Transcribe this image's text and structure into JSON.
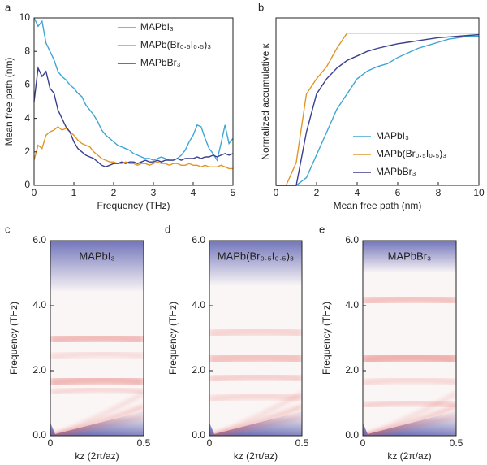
{
  "chart_data": [
    {
      "type": "line",
      "panel_label": "a",
      "xlabel": "Frequency (THz)",
      "ylabel": "Mean free path (nm)",
      "xlim": [
        0,
        5
      ],
      "ylim": [
        0,
        10
      ],
      "xticks": [
        0,
        1,
        2,
        3,
        4,
        5
      ],
      "yticks": [
        0,
        2,
        4,
        6,
        8,
        10
      ],
      "legend": "upper right",
      "x": [
        0,
        0.1,
        0.2,
        0.3,
        0.4,
        0.5,
        0.6,
        0.7,
        0.8,
        0.9,
        1,
        1.1,
        1.2,
        1.3,
        1.4,
        1.5,
        1.6,
        1.7,
        1.8,
        1.9,
        2,
        2.1,
        2.2,
        2.3,
        2.4,
        2.5,
        2.6,
        2.7,
        2.8,
        2.9,
        3,
        3.1,
        3.2,
        3.3,
        3.4,
        3.5,
        3.6,
        3.7,
        3.8,
        3.9,
        4,
        4.1,
        4.2,
        4.3,
        4.4,
        4.5,
        4.6,
        4.7,
        4.8,
        4.9,
        5
      ],
      "series": [
        {
          "name": "MAPbI₃",
          "color": "#3ea6d6",
          "values": [
            10,
            9.5,
            9.8,
            8.5,
            8,
            7.5,
            6.8,
            6.5,
            6.3,
            6,
            5.8,
            5.5,
            5.3,
            4.8,
            4.5,
            4.2,
            3.8,
            3.3,
            3,
            2.8,
            2.6,
            2.4,
            2.3,
            2.2,
            2.1,
            1.9,
            1.8,
            1.7,
            1.6,
            1.6,
            1.5,
            1.6,
            1.7,
            1.6,
            1.5,
            1.5,
            1.6,
            1.8,
            2.1,
            2.6,
            3,
            3.6,
            3.5,
            2.8,
            2.2,
            1.9,
            1.5,
            2.5,
            3.6,
            2.5,
            2.8
          ]
        },
        {
          "name": "MAPb(Br₀.₅I₀.₅)₃",
          "color": "#e0962a",
          "values": [
            1.5,
            2.4,
            2.2,
            3,
            3.2,
            3.3,
            3.5,
            3.3,
            3.4,
            3.2,
            3,
            2.7,
            2.5,
            2.4,
            2.3,
            2,
            1.8,
            1.6,
            1.5,
            1.4,
            1.4,
            1.3,
            1.3,
            1.4,
            1.3,
            1.3,
            1.2,
            1.3,
            1.3,
            1.2,
            1.3,
            1.4,
            1.3,
            1.3,
            1.2,
            1.3,
            1.3,
            1.2,
            1.2,
            1.3,
            1.2,
            1.2,
            1.1,
            1.2,
            1.1,
            1.1,
            1.1,
            1.2,
            1.1,
            1,
            1
          ]
        },
        {
          "name": "MAPbBr₃",
          "color": "#3a3f8f",
          "values": [
            5,
            7,
            6.5,
            6.8,
            5.8,
            5.5,
            4.5,
            4,
            3.5,
            3.2,
            2.6,
            2.2,
            2,
            1.8,
            1.7,
            1.6,
            1.4,
            1.2,
            1.1,
            1.2,
            1.3,
            1.3,
            1.4,
            1.3,
            1.4,
            1.4,
            1.3,
            1.4,
            1.5,
            1.4,
            1.4,
            1.5,
            1.4,
            1.5,
            1.5,
            1.5,
            1.6,
            1.5,
            1.6,
            1.6,
            1.6,
            1.7,
            1.6,
            1.7,
            1.7,
            1.8,
            1.7,
            1.8,
            1.9,
            1.8,
            1.9
          ]
        }
      ]
    },
    {
      "type": "line",
      "panel_label": "b",
      "xlabel": "Mean free path (nm)",
      "ylabel": "Normalized accumulative κ",
      "xlim": [
        0,
        10
      ],
      "ylim": [
        0,
        1.1
      ],
      "xticks": [
        0,
        2,
        4,
        6,
        8,
        10
      ],
      "yticks": [],
      "legend": "lower right",
      "x": [
        0,
        0.5,
        1,
        1.5,
        2,
        2.5,
        3,
        3.5,
        4,
        4.5,
        5,
        5.5,
        6,
        6.5,
        7,
        7.5,
        8,
        8.5,
        9,
        9.5,
        10
      ],
      "series": [
        {
          "name": "MAPbI₃",
          "color": "#3ea6d6",
          "values": [
            0,
            0,
            0,
            0.05,
            0.2,
            0.35,
            0.5,
            0.6,
            0.7,
            0.75,
            0.78,
            0.8,
            0.84,
            0.87,
            0.9,
            0.92,
            0.94,
            0.96,
            0.97,
            0.98,
            0.98
          ]
        },
        {
          "name": "MAPb(Br₀.₅I₀.₅)₃",
          "color": "#e0962a",
          "values": [
            0,
            0,
            0.15,
            0.6,
            0.7,
            0.78,
            0.9,
            1,
            1,
            1,
            1,
            1,
            1,
            1,
            1,
            1,
            1,
            1,
            1,
            1,
            1
          ]
        },
        {
          "name": "MAPbBr₃",
          "color": "#3a3f8f",
          "values": [
            0,
            0,
            0,
            0.35,
            0.6,
            0.7,
            0.77,
            0.82,
            0.85,
            0.88,
            0.9,
            0.915,
            0.93,
            0.94,
            0.95,
            0.96,
            0.97,
            0.975,
            0.98,
            0.985,
            0.99
          ]
        }
      ]
    },
    {
      "type": "heatmap",
      "panel_label": "c",
      "title": "MAPbI₃",
      "xlabel": "kz (2π/az)",
      "ylabel": "Frequency (THz)",
      "xlim": [
        0,
        0.5
      ],
      "ylim": [
        0,
        6
      ],
      "xticks": [
        0,
        0.5
      ],
      "yticks": [
        {
          "value": 0,
          "label": "0.0"
        },
        {
          "value": 2,
          "label": "2.0"
        },
        {
          "value": 4,
          "label": "4.0"
        },
        {
          "value": 6,
          "label": "6.0"
        }
      ]
    },
    {
      "type": "heatmap",
      "panel_label": "d",
      "title": "MAPb(Br₀.₅I₀.₅)₃",
      "xlabel": "kz (2π/az)",
      "ylabel": "Frequency (THz)",
      "xlim": [
        0,
        0.5
      ],
      "ylim": [
        0,
        6
      ],
      "xticks": [
        0,
        0.5
      ],
      "yticks": [
        {
          "value": 0,
          "label": "0.0"
        },
        {
          "value": 2,
          "label": "2.0"
        },
        {
          "value": 4,
          "label": "4.0"
        },
        {
          "value": 6,
          "label": "6.0"
        }
      ]
    },
    {
      "type": "heatmap",
      "panel_label": "e",
      "title": "MAPbBr₃",
      "xlabel": "kz (2π/az)",
      "ylabel": "Frequency (THz)",
      "xlim": [
        0,
        0.5
      ],
      "ylim": [
        0,
        6
      ],
      "xticks": [
        0,
        0.5
      ],
      "yticks": [
        {
          "value": 0,
          "label": "0.0"
        },
        {
          "value": 2,
          "label": "2.0"
        },
        {
          "value": 4,
          "label": "4.0"
        },
        {
          "value": 6,
          "label": "6.0"
        }
      ]
    }
  ]
}
